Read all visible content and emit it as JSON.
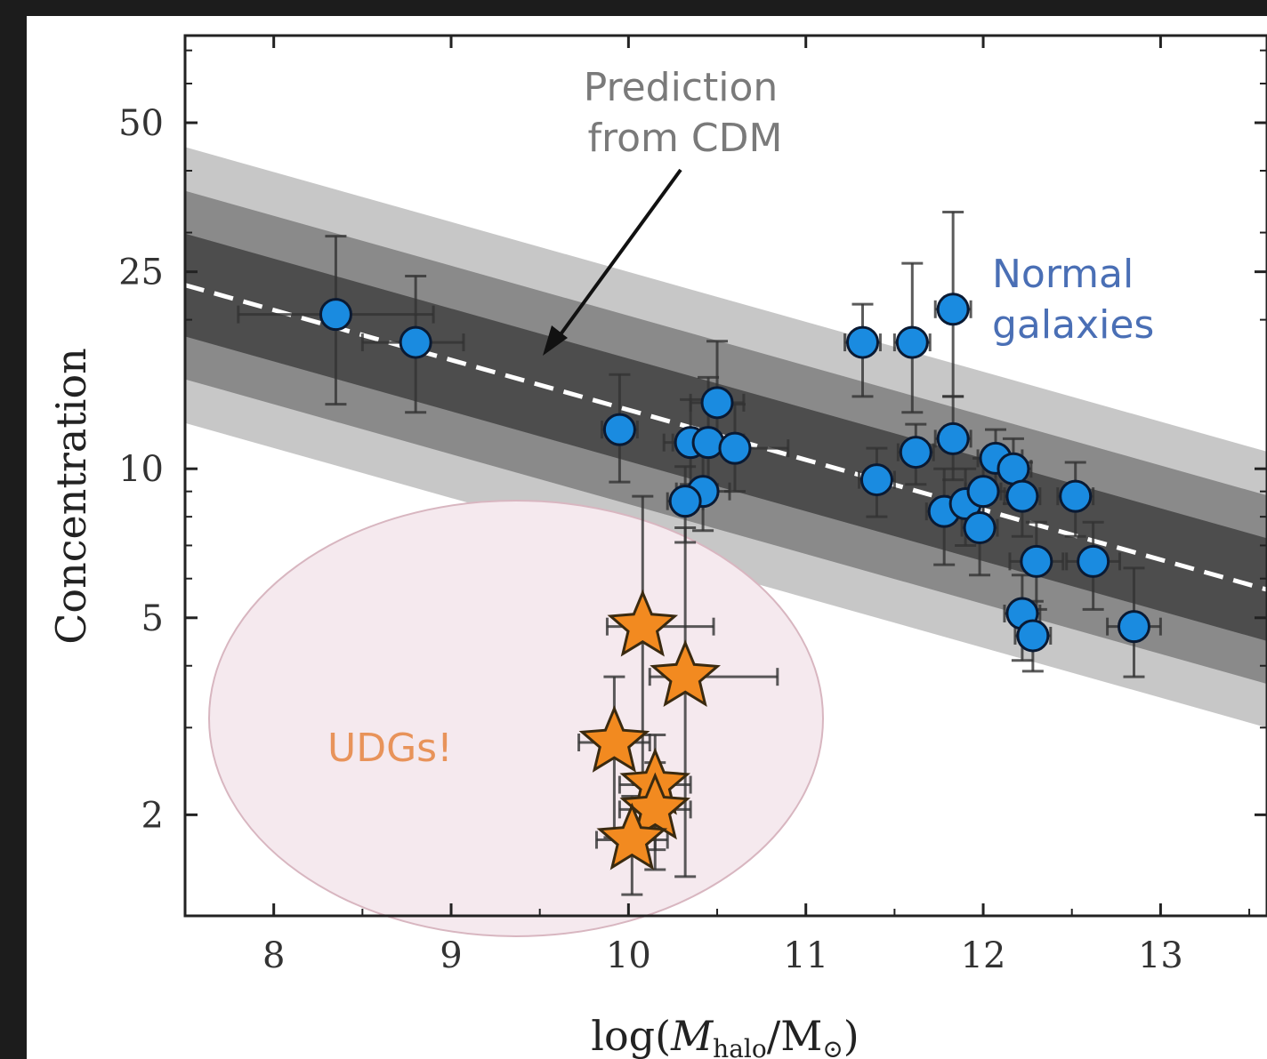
{
  "chart_data": {
    "type": "scatter",
    "title": "",
    "xlabel": "log(M_halo/M_⊙)",
    "xlabel_main": "log(",
    "xlabel_M": "M",
    "xlabel_sub": "halo",
    "xlabel_rest": "/M",
    "xlabel_sun": "⊙",
    "xlabel_close": ")",
    "ylabel": "Concentration",
    "xlim": [
      7.5,
      13.6
    ],
    "ylim": [
      1.25,
      75
    ],
    "yscale": "log",
    "xticks": [
      "8",
      "9",
      "10",
      "11",
      "12",
      "13"
    ],
    "yticks": [
      "2",
      "5",
      "10",
      "25",
      "50"
    ],
    "grid": false,
    "colors": {
      "normal_points": "#1a8be0",
      "udg_points": "#f28a20",
      "band_1sigma": "#4d4d4d",
      "band_2sigma": "#8a8a8a",
      "band_3sigma": "#c7c7c7",
      "udg_region": "#f5e9ee",
      "normal_text": "#4a6fb5",
      "udg_text": "#e8935a",
      "prediction_text": "#7a7a7a"
    },
    "prediction_line": {
      "x": [
        7.5,
        13.6
      ],
      "y": [
        23.5,
        5.7
      ]
    },
    "annotations": {
      "prediction": [
        "Prediction",
        "from CDM"
      ],
      "normal": [
        "Normal",
        "galaxies"
      ],
      "udg": "UDGs!"
    },
    "series": [
      {
        "name": "Normal galaxies",
        "marker": "circle",
        "points": [
          {
            "x": 8.35,
            "y": 20.5,
            "xerr": [
              0.55,
              0.55
            ],
            "yerr": [
              7.0,
              9.0
            ]
          },
          {
            "x": 8.8,
            "y": 18.0,
            "xerr": [
              0.3,
              0.27
            ],
            "yerr": [
              5.0,
              6.5
            ]
          },
          {
            "x": 9.95,
            "y": 12.0,
            "xerr": [
              0.1,
              0.1
            ],
            "yerr": [
              2.6,
              3.5
            ]
          },
          {
            "x": 10.35,
            "y": 11.3,
            "xerr": [
              0.15,
              0.15
            ],
            "yerr": [
              2.0,
              2.5
            ]
          },
          {
            "x": 10.45,
            "y": 11.3,
            "xerr": [
              0.2,
              0.2
            ],
            "yerr": [
              2.0,
              4.0
            ]
          },
          {
            "x": 10.5,
            "y": 13.6,
            "xerr": [
              0.15,
              0.15
            ],
            "yerr": [
              2.5,
              4.5
            ]
          },
          {
            "x": 10.6,
            "y": 11.0,
            "xerr": [
              0.15,
              0.3
            ],
            "yerr": [
              2.0,
              2.5
            ]
          },
          {
            "x": 10.42,
            "y": 9.0,
            "xerr": [
              0.15,
              0.15
            ],
            "yerr": [
              1.5,
              2.0
            ]
          },
          {
            "x": 10.32,
            "y": 8.6,
            "xerr": [
              0.1,
              0.1
            ],
            "yerr": [
              1.5,
              1.5
            ]
          },
          {
            "x": 11.32,
            "y": 18.0,
            "xerr": [
              0.1,
              0.1
            ],
            "yerr": [
              4.0,
              3.5
            ]
          },
          {
            "x": 11.6,
            "y": 18.0,
            "xerr": [
              0.1,
              0.1
            ],
            "yerr": [
              5.0,
              8.0
            ]
          },
          {
            "x": 11.83,
            "y": 21.0,
            "xerr": [
              0.1,
              0.1
            ],
            "yerr": [
              7.0,
              12.0
            ]
          },
          {
            "x": 11.83,
            "y": 11.5,
            "xerr": [
              0.1,
              0.1
            ],
            "yerr": [
              2.0,
              2.5
            ]
          },
          {
            "x": 11.62,
            "y": 10.8,
            "xerr": [
              0.1,
              0.1
            ],
            "yerr": [
              1.5,
              1.5
            ]
          },
          {
            "x": 11.4,
            "y": 9.5,
            "xerr": [
              0.1,
              0.1
            ],
            "yerr": [
              1.5,
              1.5
            ]
          },
          {
            "x": 11.78,
            "y": 8.2,
            "xerr": [
              0.1,
              0.1
            ],
            "yerr": [
              1.8,
              1.8
            ]
          },
          {
            "x": 11.9,
            "y": 8.5,
            "xerr": [
              0.1,
              0.1
            ],
            "yerr": [
              1.5,
              1.5
            ]
          },
          {
            "x": 12.0,
            "y": 9.0,
            "xerr": [
              0.1,
              0.1
            ],
            "yerr": [
              1.5,
              1.5
            ]
          },
          {
            "x": 12.07,
            "y": 10.5,
            "xerr": [
              0.1,
              0.15
            ],
            "yerr": [
              1.5,
              1.5
            ]
          },
          {
            "x": 12.17,
            "y": 10.0,
            "xerr": [
              0.1,
              0.1
            ],
            "yerr": [
              1.5,
              1.5
            ]
          },
          {
            "x": 12.22,
            "y": 8.8,
            "xerr": [
              0.1,
              0.1
            ],
            "yerr": [
              1.5,
              1.5
            ]
          },
          {
            "x": 11.98,
            "y": 7.6,
            "xerr": [
              0.1,
              0.1
            ],
            "yerr": [
              1.5,
              1.5
            ]
          },
          {
            "x": 12.3,
            "y": 6.5,
            "xerr": [
              0.15,
              0.15
            ],
            "yerr": [
              1.3,
              1.3
            ]
          },
          {
            "x": 12.52,
            "y": 8.8,
            "xerr": [
              0.1,
              0.1
            ],
            "yerr": [
              1.5,
              1.5
            ]
          },
          {
            "x": 12.62,
            "y": 6.5,
            "xerr": [
              0.15,
              0.15
            ],
            "yerr": [
              1.3,
              1.3
            ]
          },
          {
            "x": 12.22,
            "y": 5.1,
            "xerr": [
              0.1,
              0.1
            ],
            "yerr": [
              1.0,
              1.0
            ]
          },
          {
            "x": 12.28,
            "y": 4.6,
            "xerr": [
              0.1,
              0.1
            ],
            "yerr": [
              0.7,
              0.8
            ]
          },
          {
            "x": 12.85,
            "y": 4.8,
            "xerr": [
              0.15,
              0.15
            ],
            "yerr": [
              1.0,
              1.5
            ]
          }
        ]
      },
      {
        "name": "UDGs",
        "marker": "star",
        "points": [
          {
            "x": 10.08,
            "y": 4.8,
            "xerr": [
              0.2,
              0.4
            ],
            "yerr": [
              2.5,
              4.0
            ]
          },
          {
            "x": 10.32,
            "y": 3.8,
            "xerr": [
              0.2,
              0.52
            ],
            "yerr": [
              2.3,
              3.8
            ]
          },
          {
            "x": 9.92,
            "y": 2.8,
            "xerr": [
              0.2,
              0.2
            ],
            "yerr": [
              1.0,
              1.0
            ]
          },
          {
            "x": 10.15,
            "y": 2.3,
            "xerr": [
              0.2,
              0.2
            ],
            "yerr": [
              0.6,
              0.6
            ]
          },
          {
            "x": 10.15,
            "y": 2.05,
            "xerr": [
              0.2,
              0.2
            ],
            "yerr": [
              0.5,
              0.5
            ]
          },
          {
            "x": 10.02,
            "y": 1.78,
            "xerr": [
              0.2,
              0.2
            ],
            "yerr": [
              0.4,
              0.4
            ]
          }
        ]
      }
    ]
  }
}
